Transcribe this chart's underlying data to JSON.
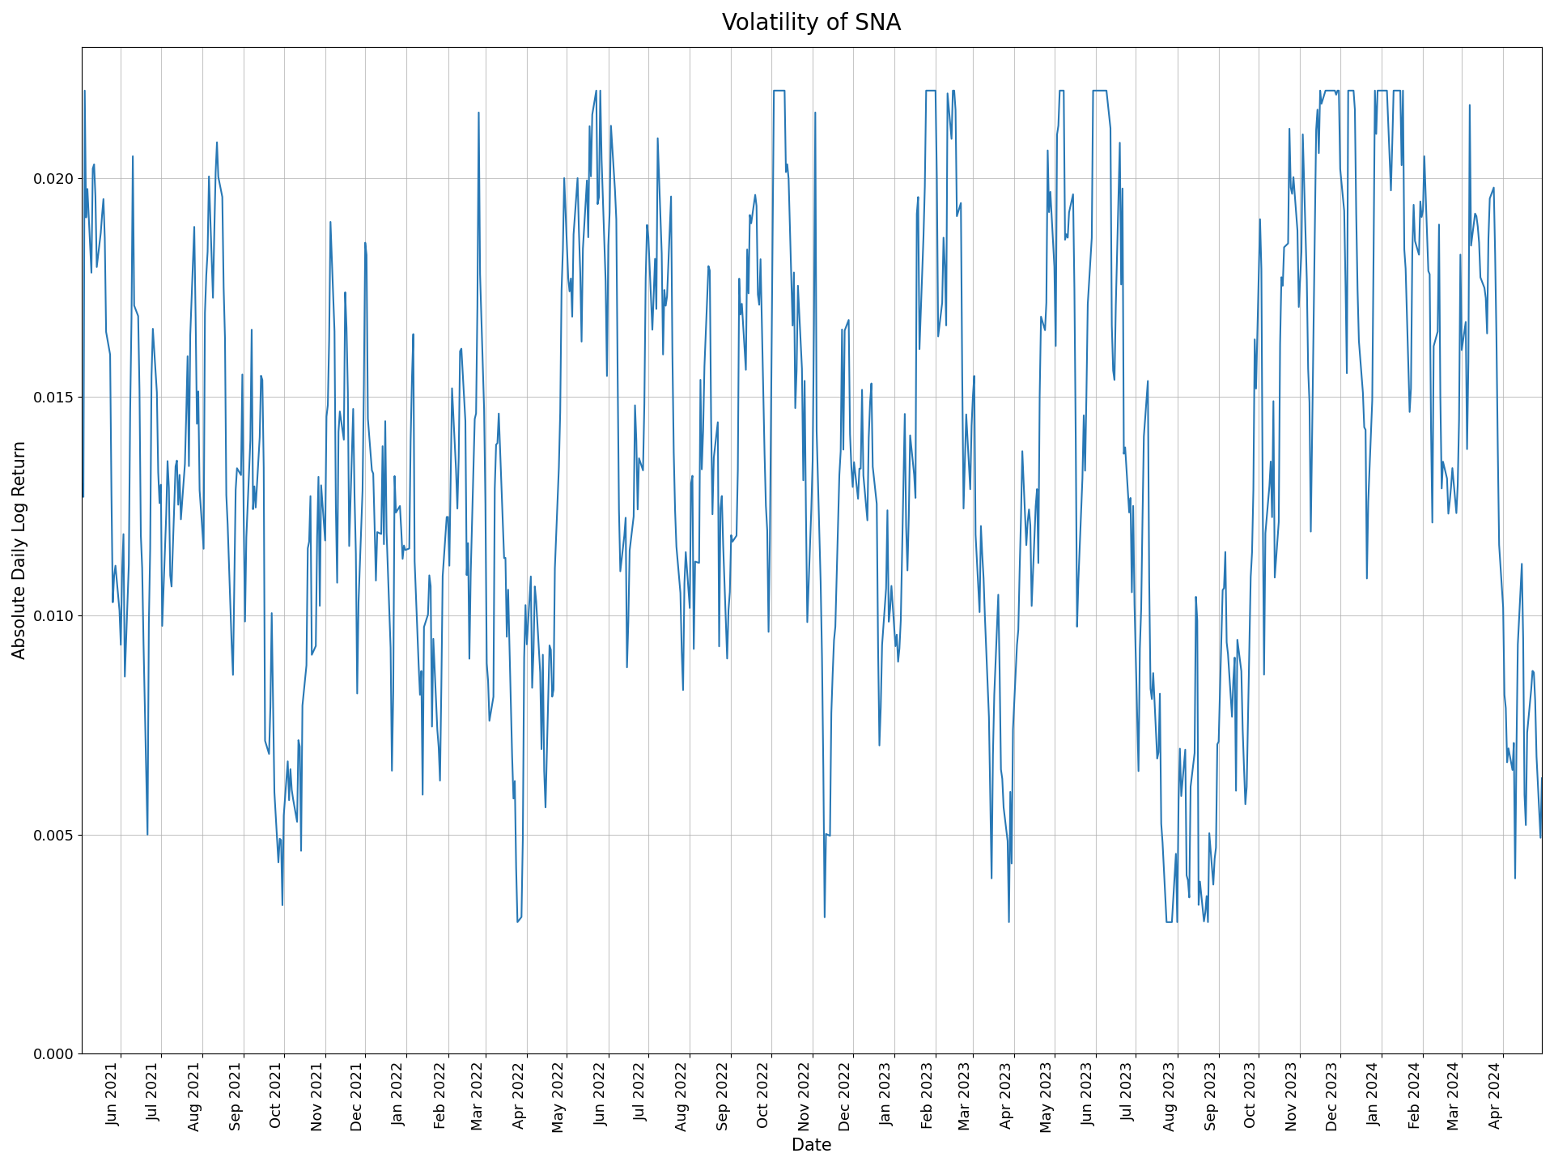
{
  "title": "Volatility of SNA",
  "xlabel": "Date",
  "ylabel": "Absolute Daily Log Return",
  "line_color": "#2878b5",
  "line_width": 1.5,
  "background_color": "#ffffff",
  "grid_color": "#b0b0b0",
  "ylim": [
    0.0,
    0.023
  ],
  "yticks": [
    0.0,
    0.005,
    0.01,
    0.015,
    0.02
  ],
  "figsize": [
    19.2,
    14.4
  ],
  "dpi": 100,
  "title_fontsize": 20,
  "label_fontsize": 15,
  "tick_fontsize": 13
}
